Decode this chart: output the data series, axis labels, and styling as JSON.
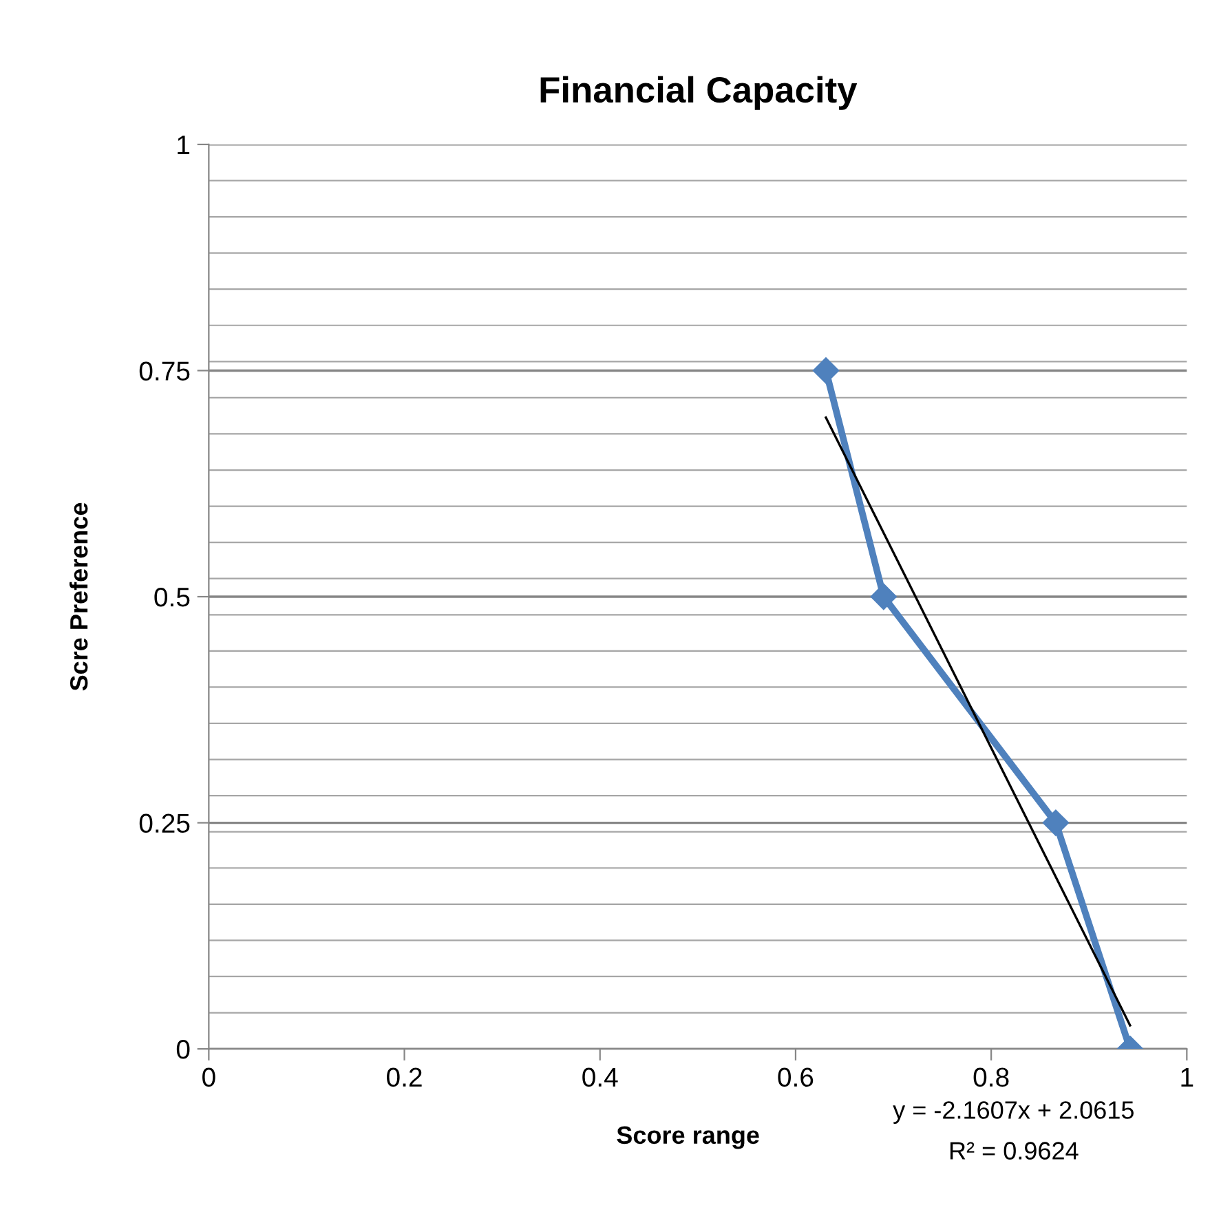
{
  "chart_data": {
    "type": "line",
    "title": "Financial Capacity",
    "xlabel": "Score range",
    "ylabel": "Scre Preference",
    "series": [
      {
        "color": "#4f81bd",
        "x": [
          0.631,
          0.69,
          0.866,
          0.942
        ],
        "values": [
          0.75,
          0.5,
          0.25,
          0
        ],
        "marker": "diamond"
      },
      {
        "color": "#000000",
        "x": [
          0.631,
          0.942
        ],
        "values": [
          0.698,
          0.026
        ],
        "marker": "none"
      }
    ],
    "annotations": [
      "y = -2.1607x + 2.0615",
      "R² = 0.9624"
    ],
    "xlim": [
      0,
      1
    ],
    "xticks": [
      0,
      0.2,
      0.4,
      0.6,
      0.8,
      1
    ],
    "ylim": [
      0,
      1
    ],
    "yticks": [
      0,
      0.25,
      0.5,
      0.75,
      1
    ],
    "grid": "y",
    "line_style": "solid"
  }
}
